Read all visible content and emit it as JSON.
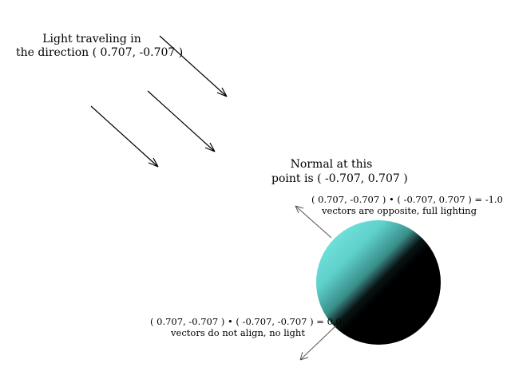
{
  "diagram": {
    "light_label": {
      "line1": "Light traveling in",
      "line2": "the direction ( 0.707, -0.707 )"
    },
    "normal_label": {
      "line1": "Normal at this",
      "line2": "point is ( -0.707, 0.707 )"
    },
    "top_annotation": {
      "equation": "( 0.707, -0.707 ) • ( -0.707, 0.707 ) = -1.0",
      "note": "vectors are opposite, full lighting"
    },
    "bottom_annotation": {
      "equation": "( 0.707, -0.707 ) • ( -0.707, -0.707 ) = 0.0",
      "note": "vectors do not align, no light"
    },
    "colors": {
      "sphere_lit": "#6fe0da",
      "sphere_shadow": "#000000",
      "background": "#ffffff",
      "light_arrow": "#000000",
      "normal_arrow": "#555555"
    }
  }
}
